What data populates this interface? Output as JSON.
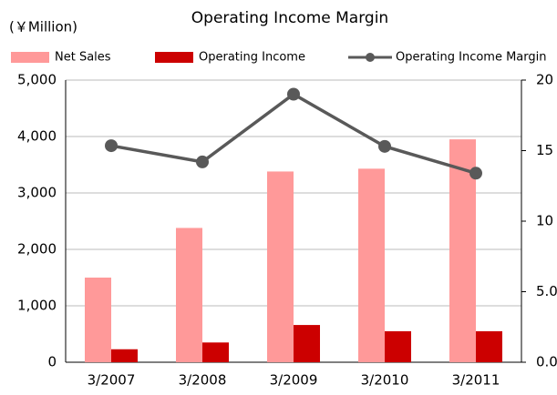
{
  "chart_data": {
    "type": "bar-line",
    "title": "Operating Income Margin",
    "unit_label": "(￥Million)",
    "categories": [
      "3/2007",
      "3/2008",
      "3/2009",
      "3/2010",
      "3/2011"
    ],
    "series": [
      {
        "name": "Net Sales",
        "type": "bar",
        "color": "#ff9999",
        "values": [
          1500,
          2380,
          3380,
          3430,
          3950
        ]
      },
      {
        "name": "Operating Income",
        "type": "bar",
        "color": "#cc0000",
        "values": [
          230,
          350,
          660,
          550,
          550
        ]
      },
      {
        "name": "Operating Income Margin",
        "type": "line",
        "axis": "y2",
        "color": "#595959",
        "values": [
          15.35,
          14.2,
          19.0,
          15.3,
          13.4
        ]
      }
    ],
    "ylim": [
      0,
      5000
    ],
    "yticks": [
      0,
      {
        "value": 1000,
        "label": "1,000"
      },
      {
        "value": 2000,
        "label": "2,000"
      },
      {
        "value": 3000,
        "label": "3,000"
      },
      {
        "value": 4000,
        "label": "4,000"
      },
      {
        "value": 5000,
        "label": "5,000"
      }
    ],
    "y2lim": [
      0,
      20
    ],
    "y2ticks": [
      {
        "value": 0,
        "label": "0.0"
      },
      {
        "value": 5,
        "label": "5.0"
      },
      10,
      15,
      20
    ],
    "grid": true
  }
}
